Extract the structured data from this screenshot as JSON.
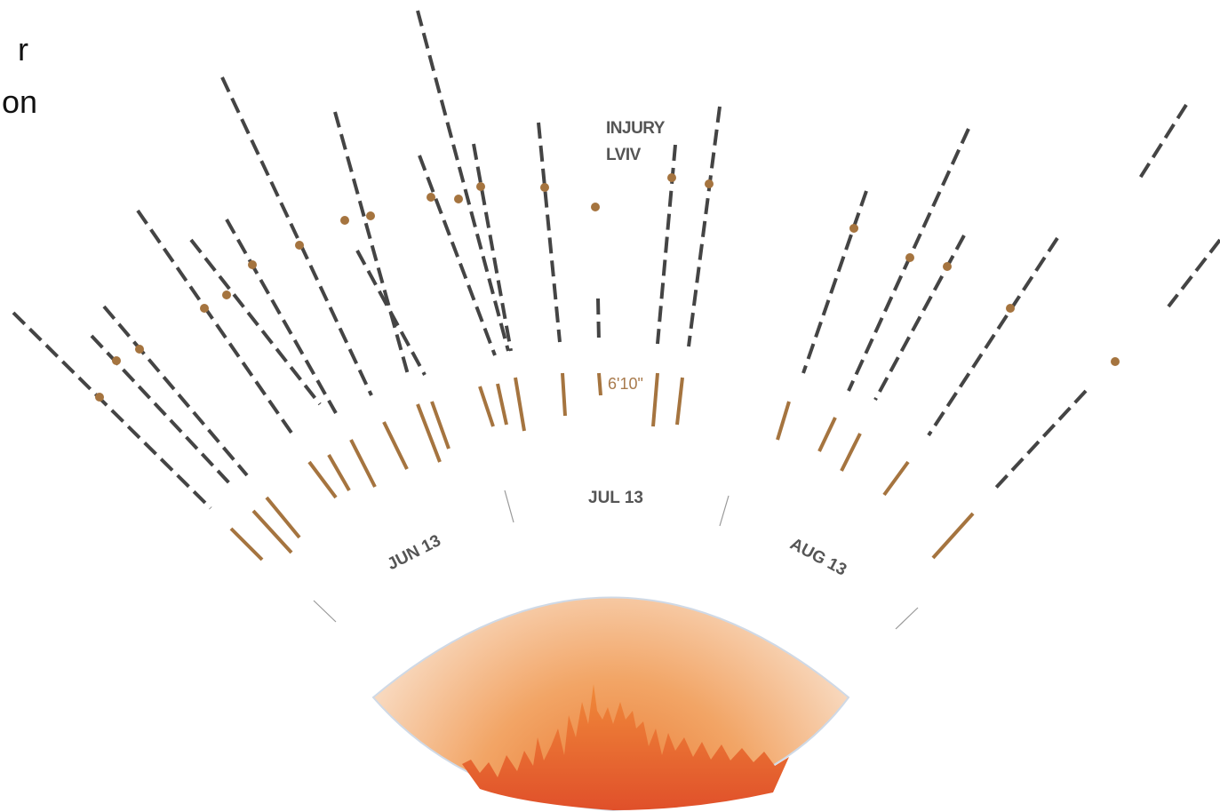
{
  "intro": {
    "lines": [
      "r",
      "on"
    ]
  },
  "annotation": {
    "title": "INJURY",
    "place": "LVIV"
  },
  "height_label": "6'10\"",
  "date_labels": [
    "JUN 13",
    "JUL 13",
    "AUG 13"
  ]
}
